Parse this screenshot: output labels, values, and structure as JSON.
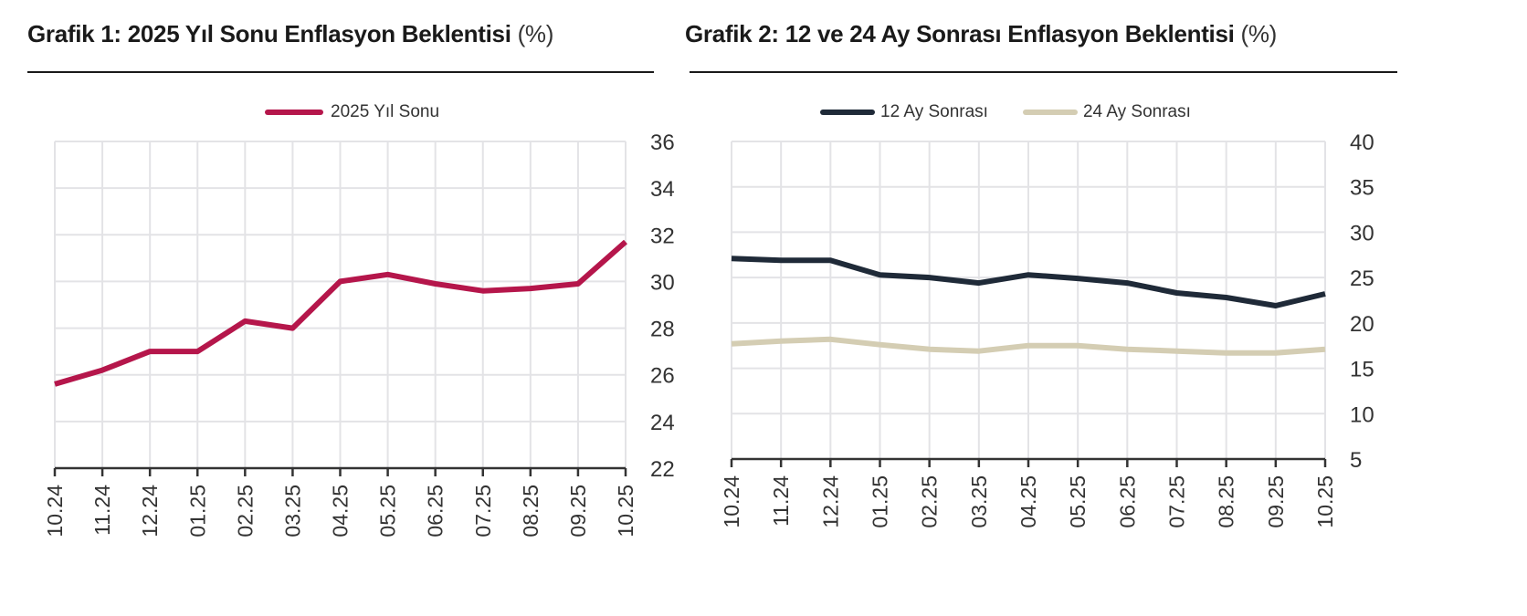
{
  "chart1": {
    "title": "Grafik 1: 2025 Yıl Sonu Enflasyon Beklentisi",
    "unit": "(%)",
    "legend": [
      {
        "label": "2025 Yıl Sonu",
        "color": "#b5164b"
      }
    ]
  },
  "chart2": {
    "title": "Grafik 2: 12 ve 24 Ay Sonrası Enflasyon Beklentisi",
    "unit": "(%)",
    "legend": [
      {
        "label": "12 Ay Sonrası",
        "color": "#1f2a38"
      },
      {
        "label": "24 Ay Sonrası",
        "color": "#d4cdb3"
      }
    ]
  },
  "chart_data": [
    {
      "type": "line",
      "title": "Grafik 1: 2025 Yıl Sonu Enflasyon Beklentisi (%)",
      "xlabel": "",
      "ylabel": "%",
      "categories": [
        "10.24",
        "11.24",
        "12.24",
        "01.25",
        "02.25",
        "03.25",
        "04.25",
        "05.25",
        "06.25",
        "07.25",
        "08.25",
        "09.25",
        "10.25"
      ],
      "series": [
        {
          "name": "2025 Yıl Sonu",
          "color": "#b5164b",
          "values": [
            25.6,
            26.2,
            27.0,
            27.0,
            28.3,
            28.0,
            30.0,
            30.3,
            29.9,
            29.6,
            29.7,
            29.9,
            31.7
          ]
        }
      ],
      "ylim": [
        22,
        36
      ],
      "yticks": [
        22,
        24,
        26,
        28,
        30,
        32,
        34,
        36
      ],
      "y_axis_position": "right",
      "grid": true,
      "legend_position": "top"
    },
    {
      "type": "line",
      "title": "Grafik 2: 12 ve 24 Ay Sonrası Enflasyon Beklentisi (%)",
      "xlabel": "",
      "ylabel": "%",
      "categories": [
        "10.24",
        "11.24",
        "12.24",
        "01.25",
        "02.25",
        "03.25",
        "04.25",
        "05.25",
        "06.25",
        "07.25",
        "08.25",
        "09.25",
        "10.25"
      ],
      "series": [
        {
          "name": "12 Ay Sonrası",
          "color": "#1f2a38",
          "values": [
            27.1,
            26.9,
            26.9,
            25.3,
            25.0,
            24.4,
            25.3,
            24.9,
            24.4,
            23.3,
            22.8,
            21.9,
            23.2
          ]
        },
        {
          "name": "24 Ay Sonrası",
          "color": "#d4cdb3",
          "values": [
            17.7,
            18.0,
            18.2,
            17.6,
            17.1,
            16.9,
            17.5,
            17.5,
            17.1,
            16.9,
            16.7,
            16.7,
            17.1
          ]
        }
      ],
      "ylim": [
        5,
        40
      ],
      "yticks": [
        5,
        10,
        15,
        20,
        25,
        30,
        35,
        40
      ],
      "y_axis_position": "right",
      "grid": true,
      "legend_position": "top"
    }
  ]
}
